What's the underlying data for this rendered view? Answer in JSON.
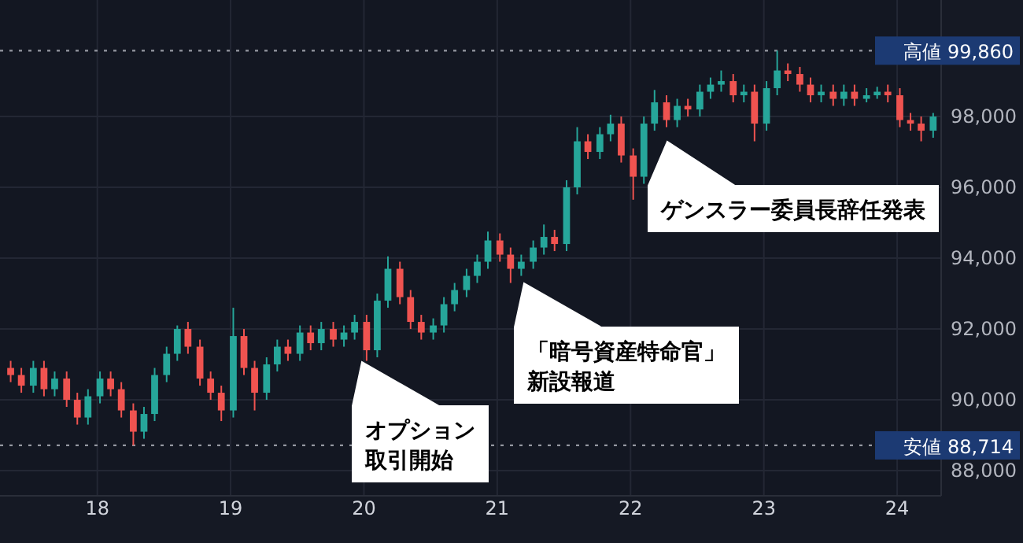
{
  "chart_data": {
    "type": "candlestick",
    "x": [
      17.35,
      17.43,
      17.52,
      17.6,
      17.68,
      17.77,
      17.85,
      17.93,
      18.02,
      18.1,
      18.18,
      18.27,
      18.35,
      18.43,
      18.52,
      18.6,
      18.68,
      18.77,
      18.85,
      18.93,
      19.02,
      19.1,
      19.18,
      19.27,
      19.35,
      19.43,
      19.52,
      19.6,
      19.68,
      19.77,
      19.85,
      19.93,
      20.02,
      20.1,
      20.18,
      20.27,
      20.35,
      20.43,
      20.52,
      20.6,
      20.68,
      20.77,
      20.85,
      20.93,
      21.02,
      21.1,
      21.18,
      21.27,
      21.35,
      21.43,
      21.52,
      21.6,
      21.68,
      21.77,
      21.85,
      21.93,
      22.02,
      22.1,
      22.18,
      22.27,
      22.35,
      22.43,
      22.52,
      22.6,
      22.68,
      22.77,
      22.85,
      22.93,
      23.02,
      23.1,
      23.18,
      23.27,
      23.35,
      23.43,
      23.52,
      23.6,
      23.68,
      23.77,
      23.85,
      23.93,
      24.02,
      24.1,
      24.18,
      24.27
    ],
    "ohlc": [
      [
        90900,
        91100,
        90500,
        90700
      ],
      [
        90700,
        90900,
        90200,
        90400
      ],
      [
        90400,
        91100,
        90200,
        90900
      ],
      [
        90900,
        91100,
        90100,
        90300
      ],
      [
        90300,
        90800,
        90100,
        90600
      ],
      [
        90600,
        90800,
        89800,
        90000
      ],
      [
        90000,
        90200,
        89300,
        89500
      ],
      [
        89500,
        90300,
        89300,
        90100
      ],
      [
        90100,
        90800,
        89900,
        90600
      ],
      [
        90600,
        90800,
        90100,
        90300
      ],
      [
        90300,
        90500,
        89500,
        89700
      ],
      [
        89700,
        89900,
        88714,
        89100
      ],
      [
        89100,
        89800,
        88900,
        89600
      ],
      [
        89600,
        90900,
        89400,
        90700
      ],
      [
        90700,
        91500,
        90500,
        91300
      ],
      [
        91300,
        92100,
        91100,
        92000
      ],
      [
        92000,
        92200,
        91300,
        91500
      ],
      [
        91500,
        91700,
        90400,
        90600
      ],
      [
        90600,
        90800,
        90000,
        90200
      ],
      [
        90200,
        90400,
        89400,
        89700
      ],
      [
        89700,
        92600,
        89500,
        91800
      ],
      [
        91800,
        92000,
        90700,
        90900
      ],
      [
        90900,
        91100,
        89700,
        90200
      ],
      [
        90200,
        91200,
        90000,
        91000
      ],
      [
        91000,
        91700,
        90800,
        91500
      ],
      [
        91500,
        91700,
        91100,
        91300
      ],
      [
        91300,
        92100,
        91100,
        91900
      ],
      [
        91900,
        92100,
        91400,
        91600
      ],
      [
        91600,
        92200,
        91400,
        92000
      ],
      [
        92000,
        92200,
        91500,
        91700
      ],
      [
        91700,
        92100,
        91500,
        91900
      ],
      [
        91900,
        92400,
        91700,
        92200
      ],
      [
        92200,
        92400,
        91100,
        91400
      ],
      [
        91400,
        93000,
        91200,
        92800
      ],
      [
        92800,
        94050,
        92600,
        93700
      ],
      [
        93700,
        93900,
        92700,
        92900
      ],
      [
        92900,
        93100,
        92000,
        92200
      ],
      [
        92200,
        92400,
        91700,
        91900
      ],
      [
        91900,
        92300,
        91700,
        92100
      ],
      [
        92100,
        92900,
        91900,
        92700
      ],
      [
        92700,
        93300,
        92500,
        93100
      ],
      [
        93100,
        93700,
        92900,
        93500
      ],
      [
        93500,
        94100,
        93300,
        93900
      ],
      [
        93900,
        94750,
        93700,
        94500
      ],
      [
        94500,
        94700,
        93900,
        94100
      ],
      [
        94100,
        94300,
        93300,
        93700
      ],
      [
        93700,
        94100,
        93500,
        93900
      ],
      [
        93900,
        94500,
        93700,
        94300
      ],
      [
        94300,
        94950,
        94100,
        94600
      ],
      [
        94600,
        94800,
        94200,
        94400
      ],
      [
        94400,
        96200,
        94200,
        96000
      ],
      [
        96000,
        97700,
        95800,
        97300
      ],
      [
        97300,
        97500,
        96800,
        97000
      ],
      [
        97000,
        97700,
        96800,
        97500
      ],
      [
        97500,
        98050,
        97300,
        97800
      ],
      [
        97800,
        98000,
        96700,
        96900
      ],
      [
        96900,
        97100,
        95650,
        96300
      ],
      [
        96300,
        98000,
        96100,
        97800
      ],
      [
        97800,
        98750,
        97600,
        98400
      ],
      [
        98400,
        98600,
        97700,
        97900
      ],
      [
        97900,
        98500,
        97700,
        98300
      ],
      [
        98300,
        98500,
        98000,
        98200
      ],
      [
        98200,
        98900,
        98000,
        98700
      ],
      [
        98700,
        99100,
        98500,
        98900
      ],
      [
        98900,
        99300,
        98700,
        99000
      ],
      [
        99000,
        99200,
        98400,
        98600
      ],
      [
        98600,
        98900,
        98400,
        98700
      ],
      [
        98700,
        98900,
        97300,
        97800
      ],
      [
        97800,
        99000,
        97600,
        98800
      ],
      [
        98800,
        99860,
        98600,
        99300
      ],
      [
        99300,
        99500,
        99000,
        99200
      ],
      [
        99200,
        99400,
        98700,
        98900
      ],
      [
        98900,
        99100,
        98400,
        98600
      ],
      [
        98600,
        98900,
        98400,
        98700
      ],
      [
        98700,
        98900,
        98300,
        98500
      ],
      [
        98500,
        98900,
        98300,
        98700
      ],
      [
        98700,
        98900,
        98300,
        98500
      ],
      [
        98500,
        98800,
        98400,
        98600
      ],
      [
        98600,
        98840,
        98500,
        98700
      ],
      [
        98700,
        98900,
        98400,
        98600
      ],
      [
        98600,
        98800,
        97700,
        97900
      ],
      [
        97900,
        98100,
        97600,
        97800
      ],
      [
        97800,
        98000,
        97300,
        97600
      ],
      [
        97600,
        98100,
        97400,
        98000
      ]
    ],
    "xlim": [
      17.27,
      24.33
    ],
    "xticks": [
      18,
      19,
      20,
      21,
      22,
      23,
      24
    ],
    "ylim": [
      87290,
      101290
    ],
    "yticks": [
      {
        "value": 88000,
        "label": "88,000"
      },
      {
        "value": 90000,
        "label": "90,000"
      },
      {
        "value": 92000,
        "label": "92,000"
      },
      {
        "value": 94000,
        "label": "94,000"
      },
      {
        "value": 96000,
        "label": "96,000"
      },
      {
        "value": 98000,
        "label": "98,000"
      }
    ],
    "grid": true,
    "ref_lines": [
      {
        "axis": "y",
        "value": 99860,
        "label": "高値 99,860",
        "line_style": "dotted"
      },
      {
        "axis": "y",
        "value": 88714,
        "label": "安値 88,714",
        "line_style": "dotted"
      }
    ],
    "annotations": [
      "オプション取引開始",
      "「暗号資産特命官」新設報道",
      "ゲンスラー委員長辞任発表"
    ]
  }
}
